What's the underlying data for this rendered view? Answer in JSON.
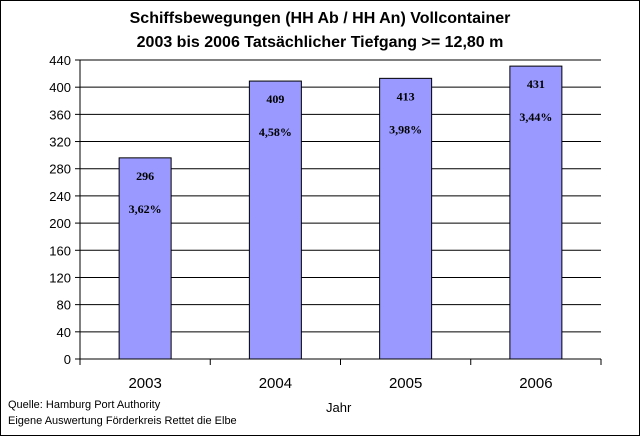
{
  "chart_data": {
    "type": "bar",
    "title": "Schiffsbewegungen (HH Ab / HH An) Vollcontainer",
    "subtitle": "2003 bis 2006  Tatsächlicher Tiefgang >= 12,80 m",
    "xlabel": "Jahr",
    "ylabel": "",
    "categories": [
      "2003",
      "2004",
      "2005",
      "2006"
    ],
    "values": [
      296,
      409,
      413,
      431
    ],
    "value_labels": [
      "296",
      "409",
      "413",
      "431"
    ],
    "percent_labels": [
      "3,62%",
      "4,58%",
      "3,98%",
      "3,44%"
    ],
    "ylim": [
      0,
      440
    ],
    "yticks": [
      0,
      40,
      80,
      120,
      160,
      200,
      240,
      280,
      320,
      360,
      400,
      440
    ],
    "grid": true,
    "legend": "none",
    "bar_color": "#9999ff"
  },
  "source": {
    "line1": "Quelle: Hamburg Port Authority",
    "line2": "Eigene Auswertung Förderkreis Rettet die Elbe"
  }
}
